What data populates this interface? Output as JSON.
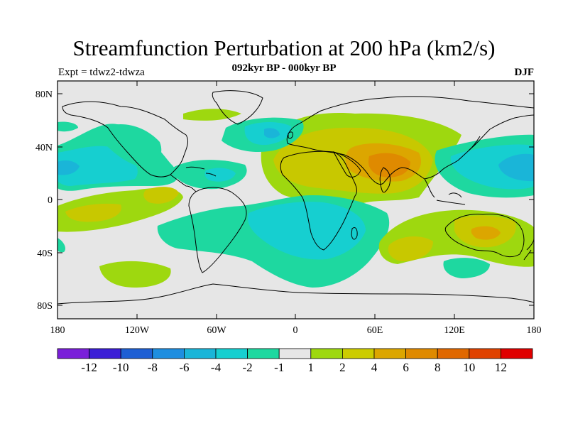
{
  "header": {
    "title": "Streamfunction Perturbation at 200 hPa (km2/s)",
    "subtitle": "092kyr BP - 000kyr BP",
    "left_label": "Expt = tdwz2-tdwza",
    "right_label": "DJF"
  },
  "axes": {
    "lat_labels": [
      "80N",
      "40N",
      "0",
      "40S",
      "80S"
    ],
    "lon_labels": [
      "180",
      "120W",
      "60W",
      "0",
      "60E",
      "120E",
      "180"
    ]
  },
  "colorbar": {
    "colors": [
      "#7a1fd9",
      "#3b1ed6",
      "#1e5fd4",
      "#1e8ee0",
      "#1ab5d8",
      "#16cfd0",
      "#1ed8a0",
      "#e6e6e6",
      "#9ed80f",
      "#cccc00",
      "#dca600",
      "#df8a00",
      "#e06800",
      "#e04200",
      "#e00000"
    ],
    "labels": [
      "-12",
      "-10",
      "-8",
      "-6",
      "-4",
      "-2",
      "-1",
      "1",
      "2",
      "4",
      "6",
      "8",
      "10",
      "12"
    ]
  },
  "map_colors": {
    "background": "#e6e6e6",
    "light_green": "#9ed80f",
    "yellow_green": "#c8c800",
    "orange": "#dca600",
    "dark_orange": "#df8a00",
    "teal_green": "#1ed8a0",
    "cyan": "#16cfd0",
    "blue": "#1ab5d8"
  }
}
